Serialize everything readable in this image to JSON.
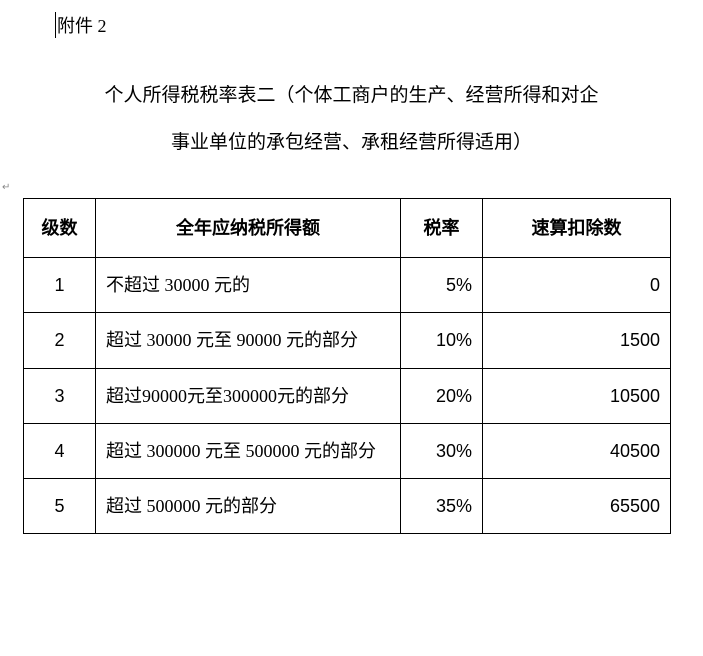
{
  "attachment_label": "附件 2",
  "title": {
    "line1": "个人所得税税率表二（个体工商户的生产、经营所得和对企",
    "line2": "事业单位的承包经营、承租经营所得适用）"
  },
  "marker_left": "↵",
  "table": {
    "headers": {
      "level": "级数",
      "range": "全年应纳税所得额",
      "rate": "税率",
      "deduction": "速算扣除数"
    },
    "rows": [
      {
        "level": "1",
        "range": "不超过 30000 元的",
        "rate": "5%",
        "deduction": "0"
      },
      {
        "level": "2",
        "range": "超过 30000 元至 90000 元的部分",
        "rate": "10%",
        "deduction": "1500"
      },
      {
        "level": "3",
        "range": "超过90000元至300000元的部分",
        "rate": "20%",
        "deduction": "10500"
      },
      {
        "level": "4",
        "range": "超过 300000 元至 500000 元的部分",
        "rate": "30%",
        "deduction": "40500"
      },
      {
        "level": "5",
        "range": "超过 500000 元的部分",
        "rate": "35%",
        "deduction": "65500"
      }
    ]
  }
}
